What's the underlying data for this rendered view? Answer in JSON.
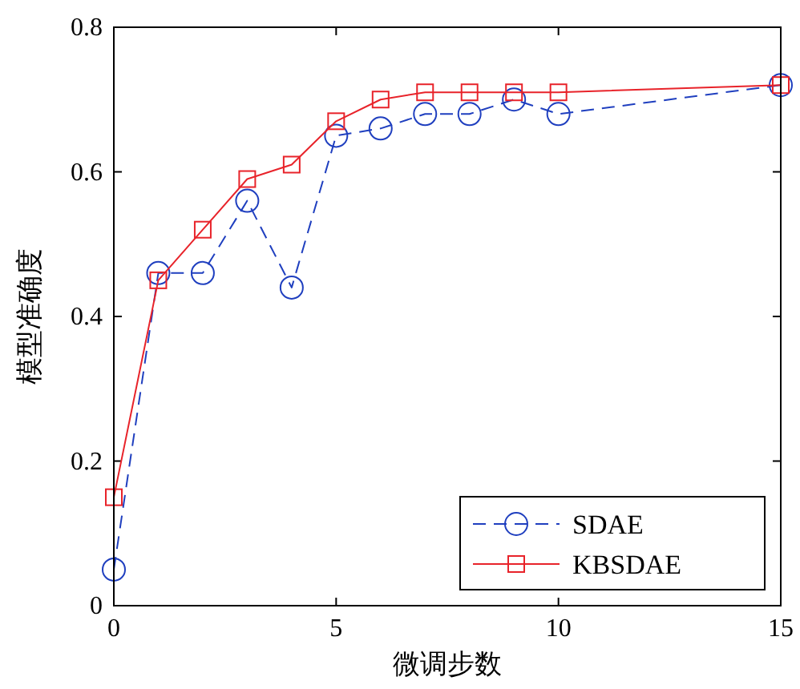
{
  "chart_data": {
    "type": "line",
    "xlabel": "微调步数",
    "ylabel": "模型准确度",
    "x": [
      0,
      1,
      2,
      3,
      4,
      5,
      6,
      7,
      8,
      9,
      10,
      15
    ],
    "series": [
      {
        "name": "SDAE",
        "color": "#1f3fbf",
        "marker": "circle",
        "line_style": "dashed",
        "values": [
          0.05,
          0.46,
          0.46,
          0.56,
          0.44,
          0.65,
          0.66,
          0.68,
          0.68,
          0.7,
          0.68,
          0.72
        ]
      },
      {
        "name": "KBSDAE",
        "color": "#e8232a",
        "marker": "square",
        "line_style": "solid",
        "values": [
          0.15,
          0.45,
          0.52,
          0.59,
          0.61,
          0.67,
          0.7,
          0.71,
          0.71,
          0.71,
          0.71,
          0.72
        ]
      }
    ],
    "xlim": [
      0,
      15
    ],
    "ylim": [
      0,
      0.8
    ],
    "xticks": [
      0,
      5,
      10,
      15
    ],
    "yticks": [
      0,
      0.2,
      0.4,
      0.6,
      0.8
    ],
    "grid": false,
    "legend": "bottom right"
  }
}
